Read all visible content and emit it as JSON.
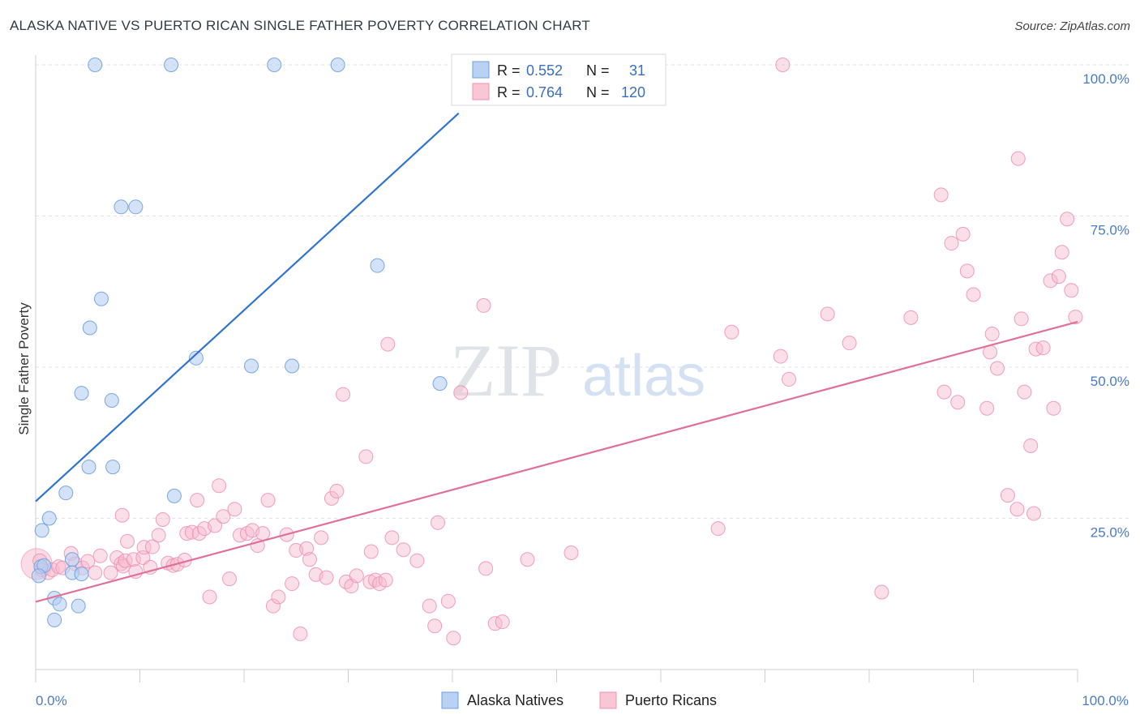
{
  "header": {
    "title": "ALASKA NATIVE VS PUERTO RICAN SINGLE FATHER POVERTY CORRELATION CHART",
    "source": "Source: ZipAtlas.com"
  },
  "watermark": {
    "zip": "ZIP",
    "atlas": "atlas"
  },
  "legend": {
    "r_label": "R =",
    "n_label": "N =",
    "alaska": {
      "r": "0.552",
      "n": "31"
    },
    "puerto": {
      "r": "0.764",
      "n": "120"
    }
  },
  "chart_data": {
    "type": "scatter",
    "title": "ALASKA NATIVE VS PUERTO RICAN SINGLE FATHER POVERTY CORRELATION CHART",
    "xlabel": "",
    "ylabel": "Single Father Poverty",
    "xlim": [
      0,
      100
    ],
    "ylim": [
      0,
      100
    ],
    "x_tick_labels": [
      "0.0%",
      "100.0%"
    ],
    "y_tick_labels": [
      "25.0%",
      "50.0%",
      "75.0%",
      "100.0%"
    ],
    "y_ticks": [
      25,
      50,
      75,
      100
    ],
    "colors": {
      "alaska": "#7aaae8",
      "puerto": "#f29cb8",
      "alaska_line": "#2f74d0",
      "puerto_line": "#e0709a"
    },
    "series": [
      {
        "name": "Alaska Natives",
        "r": 0.552,
        "n": 31,
        "trend": {
          "x": [
            0,
            40.6
          ],
          "y": [
            27.8,
            92
          ]
        },
        "points": [
          [
            0.5,
            17
          ],
          [
            0.6,
            23
          ],
          [
            1.3,
            25
          ],
          [
            0.8,
            17.2
          ],
          [
            2.9,
            29.2
          ],
          [
            1.8,
            11.8
          ],
          [
            2.3,
            10.8
          ],
          [
            1.8,
            8.2
          ],
          [
            3.5,
            18.2
          ],
          [
            3.5,
            16
          ],
          [
            4.1,
            10.5
          ],
          [
            4.4,
            15.8
          ],
          [
            4.4,
            45.7
          ],
          [
            5.1,
            33.5
          ],
          [
            5.2,
            56.5
          ],
          [
            6.3,
            61.3
          ],
          [
            7.4,
            33.5
          ],
          [
            7.3,
            44.5
          ],
          [
            8.2,
            76.5
          ],
          [
            9.6,
            76.5
          ],
          [
            5.7,
            100
          ],
          [
            13.0,
            100
          ],
          [
            13.3,
            28.7
          ],
          [
            15.4,
            51.5
          ],
          [
            20.7,
            50.2
          ],
          [
            22.9,
            100
          ],
          [
            24.6,
            50.2
          ],
          [
            29.0,
            100
          ],
          [
            32.8,
            66.8
          ],
          [
            38.8,
            47.3
          ],
          [
            0.3,
            15.5
          ]
        ]
      },
      {
        "name": "Puerto Ricans",
        "r": 0.764,
        "n": 120,
        "trend": {
          "x": [
            0,
            100
          ],
          "y": [
            11.2,
            57.5
          ]
        },
        "points": [
          [
            0.4,
            18
          ],
          [
            0.6,
            16.5
          ],
          [
            1.2,
            16
          ],
          [
            1.6,
            16.5
          ],
          [
            2.2,
            17
          ],
          [
            2.6,
            16.8
          ],
          [
            3.4,
            19.2
          ],
          [
            3.8,
            17.5
          ],
          [
            4.5,
            16.8
          ],
          [
            5.0,
            17.9
          ],
          [
            5.7,
            16
          ],
          [
            6.2,
            18.8
          ],
          [
            7.2,
            16
          ],
          [
            7.8,
            18.5
          ],
          [
            8.2,
            17.5
          ],
          [
            8.4,
            17.1
          ],
          [
            8.6,
            18
          ],
          [
            8.3,
            25.5
          ],
          [
            8.8,
            21.2
          ],
          [
            9.4,
            18.2
          ],
          [
            9.6,
            16.2
          ],
          [
            10.3,
            18.5
          ],
          [
            10.4,
            20.2
          ],
          [
            11.2,
            20.3
          ],
          [
            11.0,
            16.9
          ],
          [
            11.8,
            22.2
          ],
          [
            12.2,
            24.8
          ],
          [
            12.7,
            17.6
          ],
          [
            13.2,
            17.2
          ],
          [
            13.6,
            17.4
          ],
          [
            14.3,
            18.1
          ],
          [
            14.5,
            22.5
          ],
          [
            15.0,
            22.7
          ],
          [
            15.5,
            28
          ],
          [
            15.7,
            22.5
          ],
          [
            16.2,
            23.3
          ],
          [
            16.7,
            12
          ],
          [
            17.2,
            23.8
          ],
          [
            17.6,
            30.4
          ],
          [
            18.0,
            25.3
          ],
          [
            18.6,
            15
          ],
          [
            19.1,
            26.5
          ],
          [
            19.6,
            22.2
          ],
          [
            20.3,
            22.5
          ],
          [
            20.8,
            23
          ],
          [
            21.3,
            20.5
          ],
          [
            21.8,
            22.5
          ],
          [
            22.3,
            28
          ],
          [
            22.8,
            10.5
          ],
          [
            23.3,
            12
          ],
          [
            24.1,
            22.3
          ],
          [
            24.6,
            14.2
          ],
          [
            25.0,
            19.7
          ],
          [
            25.4,
            5.9
          ],
          [
            26.0,
            20
          ],
          [
            26.3,
            18.2
          ],
          [
            26.9,
            15.7
          ],
          [
            27.4,
            21.8
          ],
          [
            27.9,
            15.2
          ],
          [
            28.4,
            28.3
          ],
          [
            28.9,
            29.5
          ],
          [
            29.5,
            45.5
          ],
          [
            29.8,
            14.5
          ],
          [
            30.3,
            13.8
          ],
          [
            30.8,
            15.5
          ],
          [
            31.7,
            35.2
          ],
          [
            32.1,
            14.5
          ],
          [
            32.2,
            19.5
          ],
          [
            32.6,
            14.8
          ],
          [
            33.0,
            14.2
          ],
          [
            33.6,
            14.8
          ],
          [
            33.8,
            53.8
          ],
          [
            34.2,
            21.8
          ],
          [
            35.3,
            19.8
          ],
          [
            36.6,
            18
          ],
          [
            37.8,
            10.5
          ],
          [
            38.3,
            7.2
          ],
          [
            38.6,
            24.3
          ],
          [
            39.6,
            11.3
          ],
          [
            40.1,
            5.2
          ],
          [
            40.8,
            45.8
          ],
          [
            43.0,
            60.2
          ],
          [
            43.2,
            16.7
          ],
          [
            44.1,
            7.6
          ],
          [
            44.8,
            7.9
          ],
          [
            47.2,
            18.2
          ],
          [
            51.4,
            19.3
          ],
          [
            65.5,
            23.3
          ],
          [
            66.8,
            55.8
          ],
          [
            71.5,
            51.8
          ],
          [
            72.3,
            48
          ],
          [
            76.0,
            58.8
          ],
          [
            78.1,
            54
          ],
          [
            81.2,
            12.8
          ],
          [
            84.0,
            58.2
          ],
          [
            86.9,
            78.5
          ],
          [
            87.2,
            45.9
          ],
          [
            87.9,
            70.5
          ],
          [
            88.5,
            44.2
          ],
          [
            89.0,
            72
          ],
          [
            89.4,
            65.9
          ],
          [
            90.0,
            62
          ],
          [
            91.3,
            43.2
          ],
          [
            91.6,
            52.5
          ],
          [
            91.8,
            55.5
          ],
          [
            92.3,
            49.8
          ],
          [
            93.3,
            28.8
          ],
          [
            94.3,
            84.5
          ],
          [
            94.6,
            58
          ],
          [
            94.9,
            45.9
          ],
          [
            95.5,
            37
          ],
          [
            96.0,
            53
          ],
          [
            96.7,
            53.2
          ],
          [
            97.4,
            64.3
          ],
          [
            98.2,
            65
          ],
          [
            98.5,
            69
          ],
          [
            99.0,
            74.5
          ],
          [
            99.4,
            62.7
          ],
          [
            99.8,
            58.3
          ],
          [
            97.7,
            43.2
          ],
          [
            95.8,
            25.8
          ],
          [
            94.2,
            26.5
          ]
        ]
      }
    ],
    "extra_top_point": {
      "series": "Puerto Ricans",
      "x": 71.7,
      "y": 100
    }
  },
  "bottom_legend": {
    "alaska_label": "Alaska Natives",
    "puerto_label": "Puerto Ricans"
  }
}
